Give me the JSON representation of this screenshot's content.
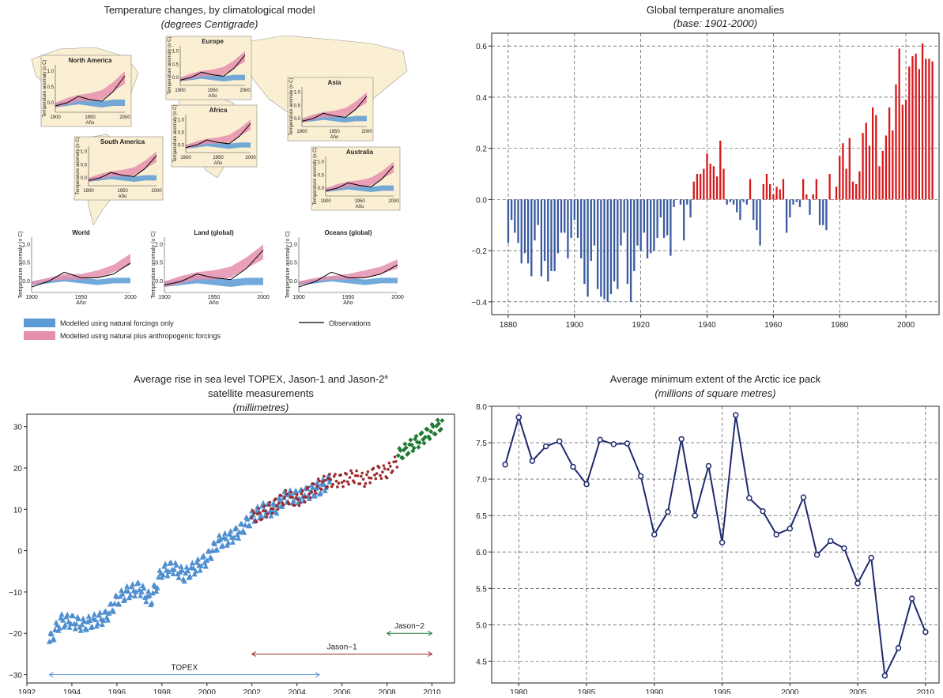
{
  "panel1": {
    "title": "Temperature changes, by climatological model",
    "subtitle": "(degrees Centigrade)",
    "regions": [
      {
        "name": "North America"
      },
      {
        "name": "Europe"
      },
      {
        "name": "Asia"
      },
      {
        "name": "Africa"
      },
      {
        "name": "South America"
      },
      {
        "name": "Australia"
      }
    ],
    "global_panels": [
      {
        "name": "World",
        "obs": [
          -0.15,
          0.0,
          0.25,
          0.1,
          0.1,
          0.2,
          0.5
        ],
        "nat_lo": [
          -0.1,
          -0.05,
          0.0,
          -0.05,
          -0.1,
          -0.05,
          -0.05
        ],
        "nat_hi": [
          0.0,
          0.05,
          0.15,
          0.1,
          0.05,
          0.1,
          0.1
        ],
        "ant_lo": [
          -0.1,
          0.0,
          0.05,
          0.05,
          0.1,
          0.25,
          0.45
        ],
        "ant_hi": [
          0.0,
          0.1,
          0.2,
          0.2,
          0.3,
          0.45,
          0.75
        ]
      },
      {
        "name": "Land (global)",
        "obs": [
          -0.1,
          0.0,
          0.2,
          0.1,
          0.05,
          0.35,
          0.85
        ],
        "nat_lo": [
          -0.15,
          -0.1,
          -0.05,
          -0.1,
          -0.15,
          -0.1,
          -0.1
        ],
        "nat_hi": [
          0.0,
          0.05,
          0.15,
          0.1,
          0.05,
          0.1,
          0.1
        ],
        "ant_lo": [
          -0.15,
          -0.05,
          0.05,
          0.05,
          0.1,
          0.35,
          0.6
        ],
        "ant_hi": [
          0.0,
          0.15,
          0.25,
          0.3,
          0.4,
          0.65,
          1.0
        ]
      },
      {
        "name": "Oceans (global)",
        "obs": [
          -0.15,
          0.0,
          0.25,
          0.1,
          0.1,
          0.2,
          0.45
        ],
        "nat_lo": [
          -0.1,
          -0.05,
          0.0,
          -0.05,
          -0.1,
          -0.05,
          -0.05
        ],
        "nat_hi": [
          0.0,
          0.05,
          0.15,
          0.1,
          0.05,
          0.1,
          0.1
        ],
        "ant_lo": [
          -0.1,
          0.0,
          0.05,
          0.05,
          0.1,
          0.2,
          0.35
        ],
        "ant_hi": [
          0.0,
          0.1,
          0.15,
          0.2,
          0.3,
          0.4,
          0.6
        ]
      }
    ],
    "years": [
      1900,
      1917,
      1933,
      1950,
      1967,
      1983,
      2000
    ],
    "ylabel": "Temperature anomaly (o C)",
    "xlabel": "Año",
    "legend": {
      "natural": "Modelled using natural forcings only",
      "anthro": "Modelled using natural plus anthropogenic forcings",
      "obs": "Observations"
    },
    "colors": {
      "natural": "#5b9bd5",
      "anthro": "#e58fae",
      "land": "#fbefd3",
      "obs": "#000000"
    }
  },
  "panel2": {
    "title": "Global temperature anomalies",
    "subtitle": "(base: 1901-2000)",
    "colors": {
      "positive": "#d7191c",
      "negative": "#3a5ba0"
    }
  },
  "panel3": {
    "title": "Average rise in sea level TOPEX, Jason-1 and Jason-2",
    "title_sup": "a",
    "title_line2": "satellite measurements",
    "subtitle": "(millimetres)",
    "labels": {
      "topex": "TOPEX",
      "jason1": "Jason−1",
      "jason2": "Jason−2"
    },
    "colors": {
      "topex": "#4f8fcf",
      "jason1": "#9e2a2b",
      "jason2": "#1f7a33"
    }
  },
  "panel4": {
    "title": "Average minimum extent of the Arctic ice pack",
    "subtitle": "(millions of square metres)",
    "colors": {
      "line": "#1f2a6e"
    }
  },
  "chart_data": [
    {
      "type": "area",
      "title": "Temperature changes, by climatological model",
      "subtitle": "(degrees Centigrade)",
      "xlabel": "Año",
      "ylabel": "Temperature anomaly (o C)",
      "x": [
        1900,
        1917,
        1933,
        1950,
        1967,
        1983,
        2000
      ],
      "series": [
        {
          "name": "World",
          "values": [
            -0.15,
            0.0,
            0.25,
            0.1,
            0.1,
            0.2,
            0.5
          ]
        },
        {
          "name": "Land (global)",
          "values": [
            -0.1,
            0.0,
            0.2,
            0.1,
            0.05,
            0.35,
            0.85
          ]
        },
        {
          "name": "Oceans (global)",
          "values": [
            -0.15,
            0.0,
            0.25,
            0.1,
            0.1,
            0.2,
            0.45
          ]
        }
      ],
      "legend": [
        "Modelled using natural forcings only",
        "Modelled using natural plus anthropogenic forcings",
        "Observations"
      ]
    },
    {
      "type": "bar",
      "title": "Global temperature anomalies",
      "subtitle": "(base: 1901-2000)",
      "xlim": [
        1875,
        2010
      ],
      "ylim": [
        -0.45,
        0.65
      ],
      "xticks": [
        1880,
        1900,
        1920,
        1940,
        1960,
        1980,
        2000
      ],
      "yticks": [
        -0.4,
        -0.2,
        0.0,
        0.2,
        0.4,
        0.6
      ],
      "grid": true,
      "x": [
        1880,
        1881,
        1882,
        1883,
        1884,
        1885,
        1886,
        1887,
        1888,
        1889,
        1890,
        1891,
        1892,
        1893,
        1894,
        1895,
        1896,
        1897,
        1898,
        1899,
        1900,
        1901,
        1902,
        1903,
        1904,
        1905,
        1906,
        1907,
        1908,
        1909,
        1910,
        1911,
        1912,
        1913,
        1914,
        1915,
        1916,
        1917,
        1918,
        1919,
        1920,
        1921,
        1922,
        1923,
        1924,
        1925,
        1926,
        1927,
        1928,
        1929,
        1930,
        1931,
        1932,
        1933,
        1934,
        1935,
        1936,
        1937,
        1938,
        1939,
        1940,
        1941,
        1942,
        1943,
        1944,
        1945,
        1946,
        1947,
        1948,
        1949,
        1950,
        1951,
        1952,
        1953,
        1954,
        1955,
        1956,
        1957,
        1958,
        1959,
        1960,
        1961,
        1962,
        1963,
        1964,
        1965,
        1966,
        1967,
        1968,
        1969,
        1970,
        1971,
        1972,
        1973,
        1974,
        1975,
        1976,
        1977,
        1978,
        1979,
        1980,
        1981,
        1982,
        1983,
        1984,
        1985,
        1986,
        1987,
        1988,
        1989,
        1990,
        1991,
        1992,
        1993,
        1994,
        1995,
        1996,
        1997,
        1998,
        1999,
        2000,
        2001,
        2002,
        2003,
        2004,
        2005,
        2006,
        2007,
        2008
      ],
      "values": [
        -0.17,
        -0.08,
        -0.13,
        -0.17,
        -0.25,
        -0.21,
        -0.25,
        -0.3,
        -0.16,
        -0.1,
        -0.3,
        -0.24,
        -0.32,
        -0.28,
        -0.28,
        -0.21,
        -0.13,
        -0.13,
        -0.23,
        -0.15,
        -0.08,
        -0.15,
        -0.23,
        -0.33,
        -0.38,
        -0.24,
        -0.18,
        -0.35,
        -0.38,
        -0.39,
        -0.4,
        -0.37,
        -0.32,
        -0.35,
        -0.18,
        -0.13,
        -0.33,
        -0.4,
        -0.28,
        -0.18,
        -0.2,
        -0.13,
        -0.23,
        -0.21,
        -0.2,
        -0.15,
        -0.07,
        -0.15,
        -0.14,
        -0.22,
        -0.03,
        0.0,
        -0.02,
        -0.16,
        -0.02,
        -0.07,
        0.07,
        0.1,
        0.1,
        0.12,
        0.18,
        0.14,
        0.13,
        0.09,
        0.23,
        0.12,
        -0.02,
        -0.01,
        -0.02,
        -0.05,
        -0.08,
        -0.01,
        -0.02,
        0.08,
        -0.08,
        -0.12,
        -0.18,
        0.06,
        0.1,
        0.06,
        0.02,
        0.05,
        0.04,
        0.08,
        -0.13,
        -0.07,
        -0.02,
        -0.01,
        -0.03,
        0.08,
        0.02,
        -0.06,
        0.02,
        0.08,
        -0.1,
        -0.1,
        -0.12,
        0.1,
        0.0,
        0.05,
        0.17,
        0.22,
        0.12,
        0.24,
        0.07,
        0.06,
        0.11,
        0.26,
        0.3,
        0.21,
        0.36,
        0.33,
        0.13,
        0.19,
        0.25,
        0.36,
        0.27,
        0.45,
        0.59,
        0.37,
        0.39,
        0.52,
        0.56,
        0.57,
        0.51,
        0.61,
        0.55,
        0.55,
        0.54
      ],
      "colors": [
        "#d7191c",
        "#3a5ba0"
      ]
    },
    {
      "type": "scatter",
      "title": "Average rise in sea level TOPEX, Jason-1 and Jason-2 satellite measurements",
      "subtitle": "(millimetres)",
      "xlim": [
        1992,
        2011
      ],
      "ylim": [
        -32,
        33
      ],
      "xticks": [
        1992,
        1994,
        1996,
        1998,
        2000,
        2002,
        2004,
        2006,
        2008,
        2010
      ],
      "yticks": [
        -30,
        -20,
        -10,
        0,
        10,
        20,
        30
      ],
      "series": [
        {
          "name": "TOPEX",
          "x": [
            1993.0,
            1993.5,
            1994.0,
            1994.5,
            1995.0,
            1995.5,
            1996.0,
            1996.5,
            1997.0,
            1997.5,
            1998.0,
            1998.5,
            1999.0,
            1999.5,
            2000.0,
            2000.5,
            2001.0,
            2001.5,
            2002.0,
            2002.5,
            2003.0,
            2003.5,
            2004.0,
            2004.5,
            2005.0,
            2005.5
          ],
          "y": [
            -22,
            -17,
            -17,
            -18,
            -17,
            -16,
            -12,
            -10,
            -9,
            -12,
            -5,
            -4,
            -6,
            -4,
            -2,
            2,
            3,
            5,
            8,
            10,
            10,
            13,
            13,
            14,
            15,
            17
          ]
        },
        {
          "name": "Jason−1",
          "x": [
            2002.0,
            2002.5,
            2003.0,
            2003.5,
            2004.0,
            2004.5,
            2005.0,
            2005.5,
            2006.0,
            2006.5,
            2007.0,
            2007.5,
            2008.0,
            2008.5
          ],
          "y": [
            8,
            9,
            11,
            13,
            12,
            14,
            16,
            17,
            17,
            18,
            17,
            19,
            19,
            22
          ]
        },
        {
          "name": "Jason−2",
          "x": [
            2008.5,
            2009.0,
            2009.5,
            2010.0,
            2010.5
          ],
          "y": [
            23,
            25,
            27,
            29,
            31
          ]
        }
      ],
      "annotations": [
        "TOPEX",
        "Jason−1",
        "Jason−2"
      ]
    },
    {
      "type": "line",
      "title": "Average minimum extent of the Arctic ice pack",
      "subtitle": "(millions of square metres)",
      "xlim": [
        1978,
        2011
      ],
      "ylim": [
        4.2,
        8.0
      ],
      "xticks": [
        1980,
        1985,
        1990,
        1995,
        2000,
        2005,
        2010
      ],
      "yticks": [
        4.5,
        5.0,
        5.5,
        6.0,
        6.5,
        7.0,
        7.5,
        8.0
      ],
      "grid": true,
      "x": [
        1979,
        1980,
        1981,
        1982,
        1983,
        1984,
        1985,
        1986,
        1987,
        1988,
        1989,
        1990,
        1991,
        1992,
        1993,
        1994,
        1995,
        1996,
        1997,
        1998,
        1999,
        2000,
        2001,
        2002,
        2003,
        2004,
        2005,
        2006,
        2007,
        2008,
        2009,
        2010
      ],
      "values": [
        7.2,
        7.85,
        7.25,
        7.45,
        7.52,
        7.17,
        6.93,
        7.54,
        7.48,
        7.49,
        7.04,
        6.24,
        6.55,
        7.55,
        6.5,
        7.18,
        6.13,
        7.88,
        6.74,
        6.56,
        6.24,
        6.32,
        6.75,
        5.96,
        6.15,
        6.05,
        5.57,
        5.92,
        4.3,
        4.68,
        5.36,
        4.9
      ]
    }
  ]
}
